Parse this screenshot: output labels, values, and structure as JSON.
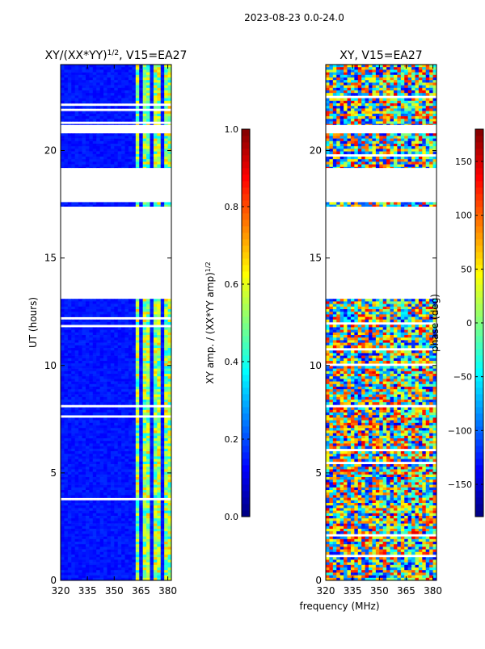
{
  "suptitle": "2023-08-23 0.0-24.0",
  "xlabel": "frequency (MHz)",
  "chart_data": [
    {
      "type": "heatmap",
      "title": "XY/(XX*YY)",
      "title_sup": "1/2",
      "title_tail": ", V15=EA27",
      "xlabel": "",
      "ylabel": "UT (hours)",
      "xlim": [
        320,
        382
      ],
      "ylim": [
        0,
        24
      ],
      "xticks": [
        320,
        335,
        350,
        365,
        380
      ],
      "yticks": [
        0,
        5,
        10,
        15,
        20
      ],
      "colorbar": {
        "label": "XY amp. / (XX*YY amp)",
        "label_sup": "1/2",
        "vmin": 0.0,
        "vmax": 1.0,
        "ticks": [
          0.0,
          0.2,
          0.4,
          0.6,
          0.8,
          1.0
        ],
        "tick_labels": [
          "0.0",
          "0.2",
          "0.4",
          "0.6",
          "0.8",
          "1.0"
        ]
      },
      "colormap": "jet",
      "data_ranges_ut": [
        [
          0.0,
          13.1
        ],
        [
          17.4,
          17.6
        ],
        [
          19.2,
          20.8
        ],
        [
          21.2,
          24.0
        ]
      ]
    },
    {
      "type": "heatmap",
      "title": "XY",
      "title_sup": "",
      "title_tail": ", V15=EA27",
      "xlabel": "",
      "ylabel": "",
      "xlim": [
        320,
        382
      ],
      "ylim": [
        0,
        24
      ],
      "xticks": [
        320,
        335,
        350,
        365,
        380
      ],
      "yticks": [
        0,
        5,
        10,
        15,
        20
      ],
      "colorbar": {
        "label": "phase (deg)",
        "label_sup": "",
        "vmin": -180,
        "vmax": 180,
        "ticks": [
          -150,
          -100,
          -50,
          0,
          50,
          100,
          150
        ],
        "tick_labels": [
          "−150",
          "−100",
          "−50",
          "0",
          "50",
          "100",
          "150"
        ]
      },
      "colormap": "jet",
      "data_ranges_ut": [
        [
          0.0,
          13.1
        ],
        [
          17.4,
          17.6
        ],
        [
          19.2,
          20.8
        ],
        [
          21.2,
          24.0
        ]
      ]
    }
  ]
}
